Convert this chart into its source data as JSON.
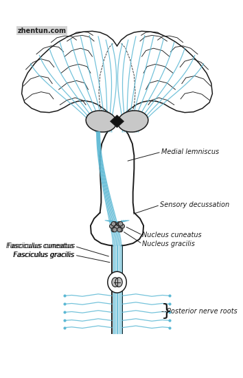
{
  "bg_color": "#ffffff",
  "line_color": "#1a1a1a",
  "blue_color": "#5bb8d4",
  "gray_fill": "#c8c8c8",
  "label_color": "#1a1a1a",
  "watermark": "zhentun.com",
  "labels": {
    "medial_lemniscus": "Medial lemniscus",
    "sensory_decussation": "Sensory decussation",
    "fasciculus_cuneatus": "Fasciculus cuneatus",
    "fasciculus_gracilis": "Fasciculus gracilis",
    "nucleus_cuneatus": "Nucleus cuneatus",
    "nucleus_gracilis": "Nucleus gracilis",
    "posterior_nerve_roots": "Posterior nerve roots"
  },
  "figsize": [
    3.54,
    5.5
  ],
  "dpi": 100
}
